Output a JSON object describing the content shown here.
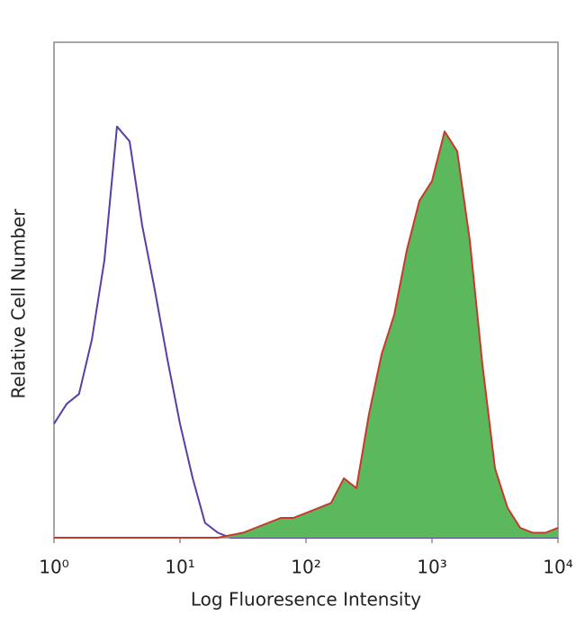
{
  "chart_data": {
    "type": "histogram-overlay",
    "xlabel": "Log Fluoresence Intensity",
    "ylabel": "Relative Cell Number",
    "xscale": "log",
    "xlim": [
      1,
      10000
    ],
    "ylim": [
      0,
      100
    ],
    "xticks": [
      {
        "value": 1,
        "label": "10⁰"
      },
      {
        "value": 10,
        "label": "10¹"
      },
      {
        "value": 100,
        "label": "10²"
      },
      {
        "value": 1000,
        "label": "10³"
      },
      {
        "value": 10000,
        "label": "10⁴"
      }
    ],
    "x": [
      1,
      1.26,
      1.58,
      2,
      2.51,
      3.16,
      3.98,
      5.01,
      6.31,
      7.94,
      10,
      12.6,
      15.8,
      20,
      25.1,
      31.6,
      39.8,
      50.1,
      63.1,
      79.4,
      100,
      126,
      158,
      200,
      251,
      316,
      398,
      501,
      631,
      794,
      1000,
      1259,
      1585,
      1995,
      2512,
      3162,
      3981,
      5012,
      6310,
      7943,
      10000
    ],
    "series": [
      {
        "color": "#5a3ea3",
        "fill": false,
        "values": [
          23,
          27,
          29,
          40,
          56,
          83,
          80,
          63,
          50,
          36,
          23,
          12,
          3,
          1,
          0,
          0,
          0,
          0,
          0,
          0,
          0,
          0,
          0,
          0,
          0,
          0,
          0,
          0,
          0,
          0,
          0,
          0,
          0,
          0,
          0,
          0,
          0,
          0,
          0,
          0,
          0
        ]
      },
      {
        "color": "#c8392b",
        "fill": true,
        "fillcolor": "#5cb85c",
        "values": [
          0,
          0,
          0,
          0,
          0,
          0,
          0,
          0,
          0,
          0,
          0,
          0,
          0,
          0,
          0.5,
          1,
          2,
          3,
          4,
          4,
          5,
          6,
          7,
          12,
          10,
          25,
          37,
          45,
          58,
          68,
          72,
          82,
          78,
          60,
          35,
          14,
          6,
          2,
          1,
          1,
          2
        ]
      }
    ]
  }
}
